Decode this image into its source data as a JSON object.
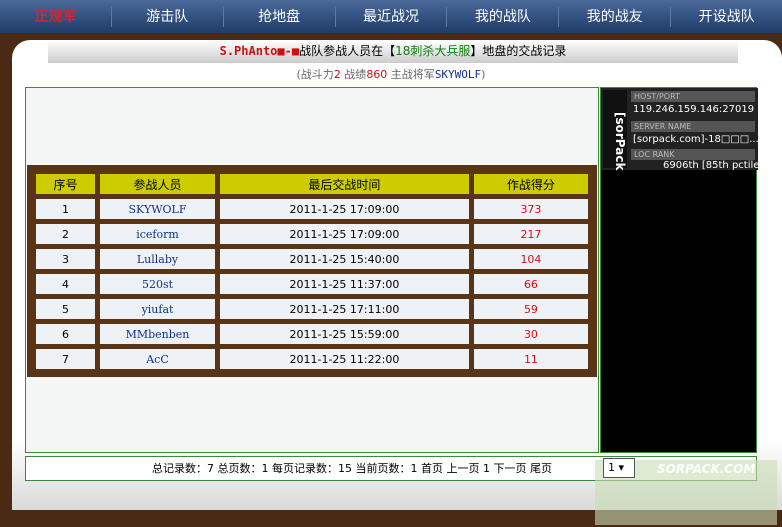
{
  "nav": [
    "正规军",
    "游击队",
    "抢地盘",
    "最近战况",
    "我的战队",
    "我的战友",
    "开设战队"
  ],
  "title": {
    "team": "S.PhAnto■-■",
    "mid": "战队参战人员在【",
    "server": "18刺杀大兵服",
    "end": "】地盘的交战记录"
  },
  "subtitle": {
    "p1": "(战斗力",
    "power": "2",
    "p2": " 战绩",
    "record": "860",
    "p3": " 主战将军",
    "leader": "SKYWOLF",
    "p4": ")"
  },
  "table": {
    "headers": [
      "序号",
      "参战人员",
      "最后交战时间",
      "作战得分"
    ],
    "rows": [
      [
        "1",
        "SKYWOLF",
        "2011-1-25 17:09:00",
        "373"
      ],
      [
        "2",
        "iceform",
        "2011-1-25 17:09:00",
        "217"
      ],
      [
        "3",
        "Lullaby",
        "2011-1-25 15:40:00",
        "104"
      ],
      [
        "4",
        "520st",
        "2011-1-25 11:37:00",
        "66"
      ],
      [
        "5",
        "yiufat",
        "2011-1-25 17:11:00",
        "59"
      ],
      [
        "6",
        "MMbenben",
        "2011-1-25 15:59:00",
        "30"
      ],
      [
        "7",
        "AcC",
        "2011-1-25 11:22:00",
        "11"
      ]
    ]
  },
  "widget": {
    "brand": "[sorPack",
    "host_label": "HOST/PORT",
    "host": "119.246.159.146:27019",
    "name_label": "SERVER NAME",
    "name": "[sorpack.com]-18□□□...",
    "loc_label": "LOC    RANK",
    "rank": "6906th [85th pctile]"
  },
  "footer": {
    "text": "总记录数：7 总页数：1 每页记录数：15 当前页数：1 首页 上一页 1 下一页 尾页",
    "page": "1 ▾"
  },
  "watermark": "SORPACK.COM"
}
